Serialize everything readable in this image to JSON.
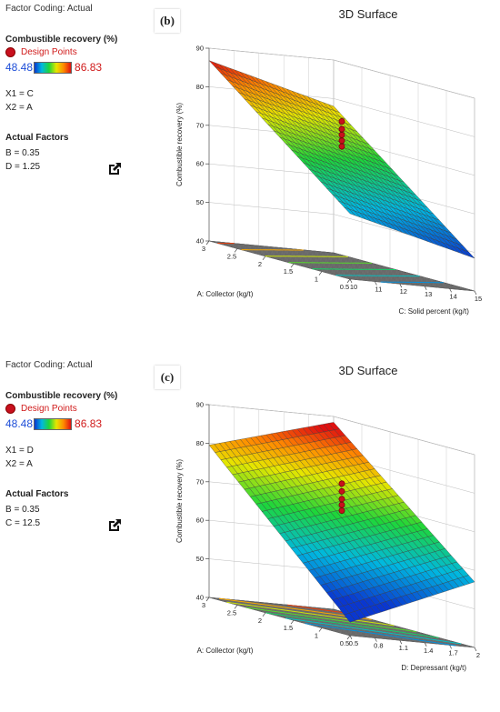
{
  "chart_data": [
    {
      "type": "surface3d",
      "panel_letter": "(b)",
      "title": "3D Surface",
      "factor_coding": "Factor Coding: Actual",
      "response": "Combustible recovery (%)",
      "design_points_label": "Design Points",
      "color_range": [
        "48.48",
        "86.83"
      ],
      "x1": "X1 = C",
      "x2": "X2 = A",
      "actual_factors_title": "Actual Factors",
      "actual_factors": [
        "B = 0.35",
        "D = 1.25"
      ],
      "zlabel": "Combustible recovery (%)",
      "xlabel": "C: Solid percent (kg/t)",
      "ylabel": "A: Collector  (kg/t)",
      "z_ticks": [
        "40",
        "50",
        "60",
        "70",
        "80",
        "90"
      ],
      "x_ticks": [
        "10",
        "11",
        "12",
        "13",
        "14",
        "15"
      ],
      "y_ticks": [
        "0.5",
        "1",
        "1.5",
        "2",
        "2.5",
        "3"
      ],
      "zlim": [
        40,
        90
      ],
      "xlim": [
        10,
        15
      ],
      "ylim": [
        0.5,
        3
      ],
      "surface_corners": {
        "x0y0": 57.0,
        "x1y0": 48.5,
        "x0y1": 86.8,
        "x1y1": 78.0
      },
      "design_points_z": [
        71.0,
        72.5,
        74.0,
        75.5,
        77.5
      ]
    },
    {
      "type": "surface3d",
      "panel_letter": "(c)",
      "title": "3D Surface",
      "factor_coding": "Factor Coding: Actual",
      "response": "Combustible recovery (%)",
      "design_points_label": "Design Points",
      "color_range": [
        "48.48",
        "86.83"
      ],
      "x1": "X1 = D",
      "x2": "X2 = A",
      "actual_factors_title": "Actual Factors",
      "actual_factors": [
        "B = 0.35",
        "C = 12.5"
      ],
      "zlabel": "Combustible recovery (%)",
      "xlabel": "D: Depressant  (kg/t)",
      "ylabel": "A: Collector  (kg/t)",
      "z_ticks": [
        "40",
        "50",
        "60",
        "70",
        "80",
        "90"
      ],
      "x_ticks": [
        "0.5",
        "0.8",
        "1.1",
        "1.4",
        "1.7",
        "2"
      ],
      "y_ticks": [
        "0.5",
        "1",
        "1.5",
        "2",
        "2.5",
        "3"
      ],
      "zlim": [
        40,
        90
      ],
      "xlim": [
        0.5,
        2
      ],
      "ylim": [
        0.5,
        3
      ],
      "surface_corners": {
        "x0y0": 43.5,
        "x1y0": 57.0,
        "x0y1": 79.5,
        "x1y1": 88.5
      },
      "design_points_z": [
        69.0,
        70.5,
        72.0,
        74.0,
        76.0
      ]
    }
  ]
}
